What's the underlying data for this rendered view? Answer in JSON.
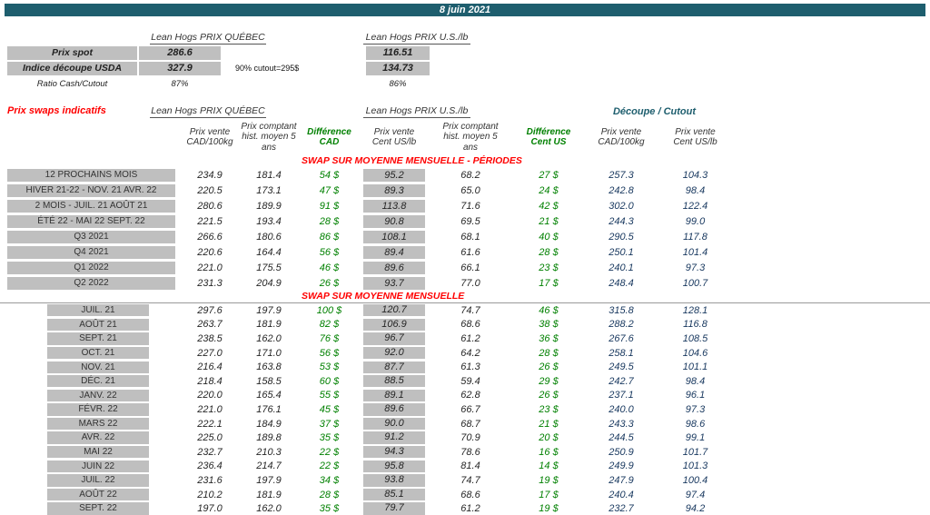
{
  "colors": {
    "teal": "#1E5E6E",
    "gray": "#BFBFBF",
    "red": "#FF0000",
    "green": "#008000",
    "blue": "#17375E"
  },
  "banner": {
    "date": "8 juin 2021"
  },
  "spot": {
    "quebec_header": "Lean Hogs PRIX QUÉBEC",
    "us_header": "Lean Hogs PRIX U.S./lb",
    "rows": [
      {
        "label": "Prix spot",
        "qc": "286.6",
        "note": "",
        "us": "116.51"
      },
      {
        "label": "Indice découpe USDA",
        "qc": "327.9",
        "note": "90% cutout=295$",
        "us": "134.73"
      },
      {
        "label": "Ratio Cash/Cutout",
        "qc": "87%",
        "note": "",
        "us": "86%"
      }
    ]
  },
  "swaps": {
    "title": "Prix swaps indicatifs",
    "quebec_group": "Lean Hogs PRIX QUÉBEC",
    "us_group": "Lean Hogs PRIX U.S./lb",
    "cutout_group": "Découpe / Cutout",
    "columns": [
      "Prix vente CAD/100kg",
      "Prix comptant hist. moyen 5 ans",
      "Différence CAD",
      "Prix vente Cent US/lb",
      "Prix comptant hist. moyen 5 ans",
      "Différence Cent US",
      "Prix vente CAD/100kg",
      "Prix vente Cent US/lb"
    ],
    "section_periods": {
      "title": "SWAP SUR MOYENNE MENSUELLE - PÉRIODES",
      "rows": [
        [
          "12 PROCHAINS MOIS",
          "234.9",
          "181.4",
          "54 $",
          "95.2",
          "68.2",
          "27 $",
          "257.3",
          "104.3"
        ],
        [
          "HIVER 21-22 - NOV. 21 AVR. 22",
          "220.5",
          "173.1",
          "47 $",
          "89.3",
          "65.0",
          "24 $",
          "242.8",
          "98.4"
        ],
        [
          "2 MOIS - JUIL. 21 AOÛT 21",
          "280.6",
          "189.9",
          "91 $",
          "113.8",
          "71.6",
          "42 $",
          "302.0",
          "122.4"
        ],
        [
          "ÉTÉ 22 - MAI 22 SEPT. 22",
          "221.5",
          "193.4",
          "28 $",
          "90.8",
          "69.5",
          "21 $",
          "244.3",
          "99.0"
        ],
        [
          "Q3 2021",
          "266.6",
          "180.6",
          "86 $",
          "108.1",
          "68.1",
          "40 $",
          "290.5",
          "117.8"
        ],
        [
          "Q4 2021",
          "220.6",
          "164.4",
          "56 $",
          "89.4",
          "61.6",
          "28 $",
          "250.1",
          "101.4"
        ],
        [
          "Q1 2022",
          "221.0",
          "175.5",
          "46 $",
          "89.6",
          "66.1",
          "23 $",
          "240.1",
          "97.3"
        ],
        [
          "Q2 2022",
          "231.3",
          "204.9",
          "26 $",
          "93.7",
          "77.0",
          "17 $",
          "248.4",
          "100.7"
        ]
      ]
    },
    "section_months": {
      "title": "SWAP SUR MOYENNE MENSUELLE",
      "rows": [
        [
          "JUIL. 21",
          "297.6",
          "197.9",
          "100 $",
          "120.7",
          "74.7",
          "46 $",
          "315.8",
          "128.1"
        ],
        [
          "AOÛT 21",
          "263.7",
          "181.9",
          "82 $",
          "106.9",
          "68.6",
          "38 $",
          "288.2",
          "116.8"
        ],
        [
          "SEPT. 21",
          "238.5",
          "162.0",
          "76 $",
          "96.7",
          "61.2",
          "36 $",
          "267.6",
          "108.5"
        ],
        [
          "OCT. 21",
          "227.0",
          "171.0",
          "56 $",
          "92.0",
          "64.2",
          "28 $",
          "258.1",
          "104.6"
        ],
        [
          "NOV. 21",
          "216.4",
          "163.8",
          "53 $",
          "87.7",
          "61.3",
          "26 $",
          "249.5",
          "101.1"
        ],
        [
          "DÉC. 21",
          "218.4",
          "158.5",
          "60 $",
          "88.5",
          "59.4",
          "29 $",
          "242.7",
          "98.4"
        ],
        [
          "JANV. 22",
          "220.0",
          "165.4",
          "55 $",
          "89.1",
          "62.8",
          "26 $",
          "237.1",
          "96.1"
        ],
        [
          "FÉVR. 22",
          "221.0",
          "176.1",
          "45 $",
          "89.6",
          "66.7",
          "23 $",
          "240.0",
          "97.3"
        ],
        [
          "MARS 22",
          "222.1",
          "184.9",
          "37 $",
          "90.0",
          "68.7",
          "21 $",
          "243.3",
          "98.6"
        ],
        [
          "AVR. 22",
          "225.0",
          "189.8",
          "35 $",
          "91.2",
          "70.9",
          "20 $",
          "244.5",
          "99.1"
        ],
        [
          "MAI 22",
          "232.7",
          "210.3",
          "22 $",
          "94.3",
          "78.6",
          "16 $",
          "250.9",
          "101.7"
        ],
        [
          "JUIN 22",
          "236.4",
          "214.7",
          "22 $",
          "95.8",
          "81.4",
          "14 $",
          "249.9",
          "101.3"
        ],
        [
          "JUIL. 22",
          "231.6",
          "197.9",
          "34 $",
          "93.8",
          "74.7",
          "19 $",
          "247.9",
          "100.4"
        ],
        [
          "AOÛT 22",
          "210.2",
          "181.9",
          "28 $",
          "85.1",
          "68.6",
          "17 $",
          "240.4",
          "97.4"
        ],
        [
          "SEPT. 22",
          "197.0",
          "162.0",
          "35 $",
          "79.7",
          "61.2",
          "19 $",
          "232.7",
          "94.2"
        ]
      ]
    }
  }
}
